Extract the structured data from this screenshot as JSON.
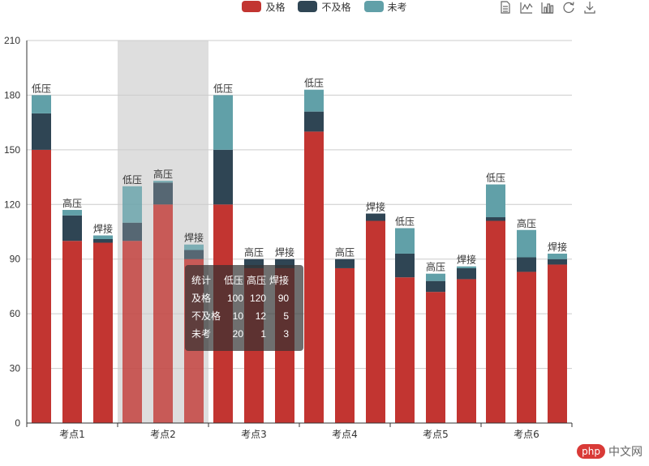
{
  "legend": {
    "items": [
      {
        "label": "及格",
        "color": "#c23531"
      },
      {
        "label": "不及格",
        "color": "#2f4554"
      },
      {
        "label": "未考",
        "color": "#61a0a8"
      }
    ]
  },
  "toolbox": {
    "icons": [
      "data-view-icon",
      "line-chart-icon",
      "bar-chart-icon",
      "refresh-icon",
      "download-icon"
    ]
  },
  "chart_data": {
    "type": "bar",
    "stacked": true,
    "grid": true,
    "legend_position": "top-center",
    "highlighted_category": "考点2",
    "categories": [
      "考点1",
      "考点2",
      "考点3",
      "考点4",
      "考点5",
      "考点6"
    ],
    "ylim": [
      0,
      210
    ],
    "yticks": [
      0,
      30,
      60,
      90,
      120,
      150,
      180,
      210
    ],
    "bar_labels": [
      "低压",
      "高压",
      "焊接"
    ],
    "series": [
      {
        "name": "及格",
        "color": "#c23531",
        "values": [
          [
            150,
            100,
            99
          ],
          [
            100,
            120,
            90
          ],
          [
            120,
            85,
            85
          ],
          [
            160,
            85,
            111
          ],
          [
            80,
            72,
            79
          ],
          [
            111,
            83,
            87
          ]
        ]
      },
      {
        "name": "不及格",
        "color": "#2f4554",
        "values": [
          [
            20,
            14,
            2
          ],
          [
            10,
            12,
            5
          ],
          [
            30,
            5,
            5
          ],
          [
            11,
            5,
            4
          ],
          [
            13,
            6,
            6
          ],
          [
            2,
            8,
            3
          ]
        ]
      },
      {
        "name": "未考",
        "color": "#61a0a8",
        "values": [
          [
            10,
            3,
            2
          ],
          [
            20,
            1,
            3
          ],
          [
            30,
            0,
            0
          ],
          [
            12,
            0,
            0
          ],
          [
            14,
            4,
            1
          ],
          [
            18,
            15,
            3
          ]
        ]
      }
    ]
  },
  "tooltip": {
    "header": [
      "统计",
      "低压",
      "高压",
      "焊接"
    ],
    "rows": [
      [
        "及格",
        "100",
        "120",
        "90"
      ],
      [
        "不及格",
        "10",
        "12",
        "5"
      ],
      [
        "未考",
        "20",
        "1",
        "3"
      ]
    ]
  },
  "watermark": {
    "logo": "php",
    "text": "中文网"
  }
}
